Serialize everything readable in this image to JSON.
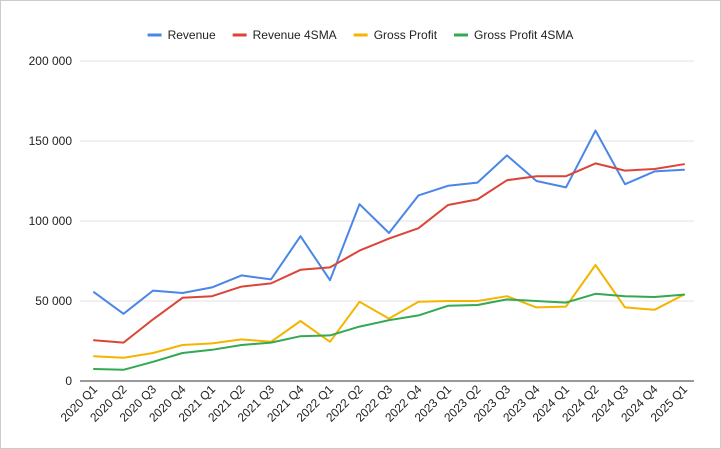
{
  "chart_data": {
    "type": "line",
    "title": "",
    "xlabel": "",
    "ylabel": "",
    "ylim": [
      0,
      200000
    ],
    "yticks": [
      0,
      50000,
      100000,
      150000,
      200000
    ],
    "ytick_labels": [
      "0",
      "50 000",
      "100 000",
      "150 000",
      "200 000"
    ],
    "grid": true,
    "legend_position": "top",
    "categories": [
      "2020 Q1",
      "2020 Q2",
      "2020 Q3",
      "2020 Q4",
      "2021 Q1",
      "2021 Q2",
      "2021 Q3",
      "2021 Q4",
      "2022 Q1",
      "2022 Q2",
      "2022 Q3",
      "2022 Q4",
      "2023 Q1",
      "2023 Q2",
      "2023 Q3",
      "2023 Q4",
      "2024 Q1",
      "2024 Q2",
      "2024 Q3",
      "2024 Q4",
      "2025 Q1"
    ],
    "series": [
      {
        "name": "Revenue",
        "color": "#4a86e8",
        "values": [
          55500,
          42000,
          56500,
          55000,
          58500,
          66000,
          63500,
          90500,
          63000,
          110500,
          92500,
          116000,
          122000,
          124000,
          141000,
          125000,
          121000,
          156500,
          123000,
          131000,
          132000
        ]
      },
      {
        "name": "Revenue 4SMA",
        "color": "#db4437",
        "values": [
          25500,
          24000,
          38500,
          52000,
          53000,
          59000,
          61000,
          69500,
          71000,
          81500,
          89000,
          95500,
          110000,
          113500,
          125500,
          128000,
          128000,
          136000,
          131500,
          132500,
          135500
        ]
      },
      {
        "name": "Gross Profit",
        "color": "#f4b400",
        "values": [
          15500,
          14500,
          17500,
          22500,
          23500,
          26000,
          24500,
          37500,
          24500,
          49500,
          39000,
          49500,
          50000,
          50000,
          53000,
          46000,
          46500,
          72500,
          46000,
          44500,
          54000
        ]
      },
      {
        "name": "Gross Profit 4SMA",
        "color": "#34a853",
        "values": [
          7500,
          7000,
          12000,
          17500,
          19500,
          22500,
          24000,
          28000,
          28500,
          34000,
          38000,
          41000,
          47000,
          47500,
          51000,
          50000,
          49000,
          54500,
          53000,
          52500,
          54000
        ]
      }
    ]
  }
}
